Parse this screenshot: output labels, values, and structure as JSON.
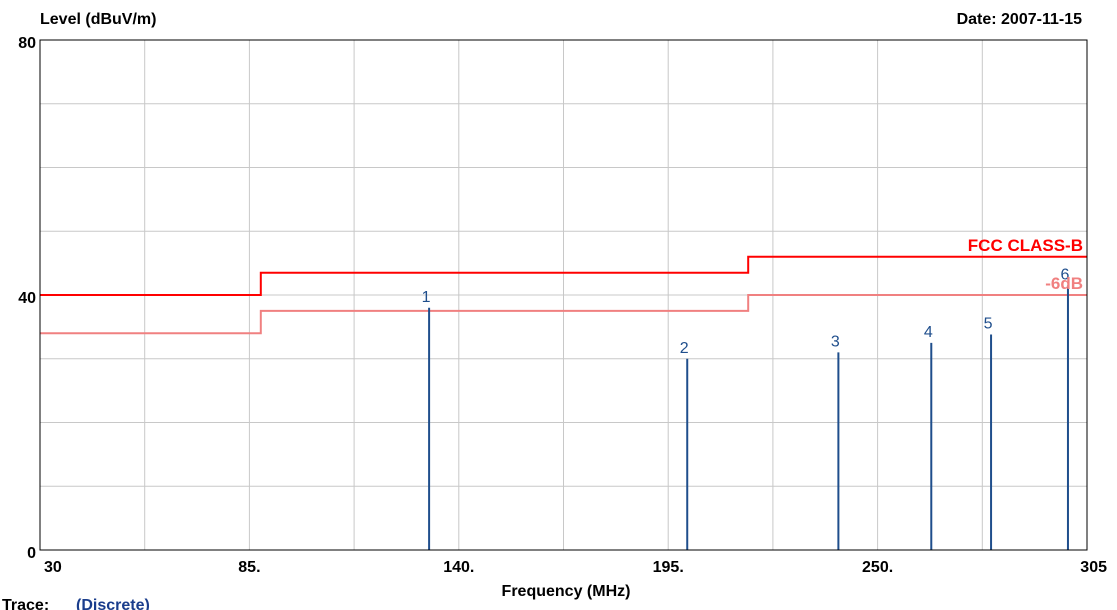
{
  "header": {
    "ylabel": "Level (dBuV/m)",
    "date": "Date: 2007-11-15"
  },
  "footer": {
    "xlabel": "Frequency (MHz)",
    "trace_label": "Trace:",
    "trace_value": "(Discrete)"
  },
  "colors": {
    "limit": "#ff0000",
    "margin": "#f08080",
    "marker": "#1f4e8c",
    "grid": "#c8c8c8",
    "trace_value": "#1a3d8c"
  },
  "chart_data": {
    "type": "line",
    "xlabel": "Frequency (MHz)",
    "ylabel": "Level (dBuV/m)",
    "xlim": [
      30,
      305
    ],
    "ylim": [
      0,
      80
    ],
    "grid": true,
    "x_ticks": [
      {
        "value": 30,
        "label": "30"
      },
      {
        "value": 85,
        "label": "85."
      },
      {
        "value": 140,
        "label": "140."
      },
      {
        "value": 195,
        "label": "195."
      },
      {
        "value": 250,
        "label": "250."
      },
      {
        "value": 305,
        "label": "305"
      }
    ],
    "y_ticks": [
      {
        "value": 0,
        "label": "0"
      },
      {
        "value": 40,
        "label": "40"
      },
      {
        "value": 80,
        "label": "80"
      }
    ],
    "x_grid": [
      30,
      57.5,
      85,
      112.5,
      140,
      167.5,
      195,
      222.5,
      250,
      277.5,
      305
    ],
    "y_grid": [
      0,
      10,
      20,
      30,
      40,
      50,
      60,
      70,
      80
    ],
    "series": [
      {
        "name": "FCC CLASS-B",
        "kind": "limit",
        "color": "#ff0000",
        "points": [
          [
            30,
            40
          ],
          [
            88,
            40
          ],
          [
            88,
            43.5
          ],
          [
            216,
            43.5
          ],
          [
            216,
            46
          ],
          [
            305,
            46
          ]
        ]
      },
      {
        "name": "-6dB",
        "kind": "margin",
        "color": "#f08080",
        "points": [
          [
            30,
            34
          ],
          [
            88,
            34
          ],
          [
            88,
            37.5
          ],
          [
            216,
            37.5
          ],
          [
            216,
            40
          ],
          [
            305,
            40
          ]
        ]
      }
    ],
    "markers": [
      {
        "label": "1",
        "x": 132.2,
        "y": 38.0
      },
      {
        "label": "2",
        "x": 200.0,
        "y": 30.0
      },
      {
        "label": "3",
        "x": 239.7,
        "y": 31.0
      },
      {
        "label": "4",
        "x": 264.1,
        "y": 32.5
      },
      {
        "label": "5",
        "x": 279.8,
        "y": 33.8
      },
      {
        "label": "6",
        "x": 300.0,
        "y": 41.5
      }
    ]
  }
}
